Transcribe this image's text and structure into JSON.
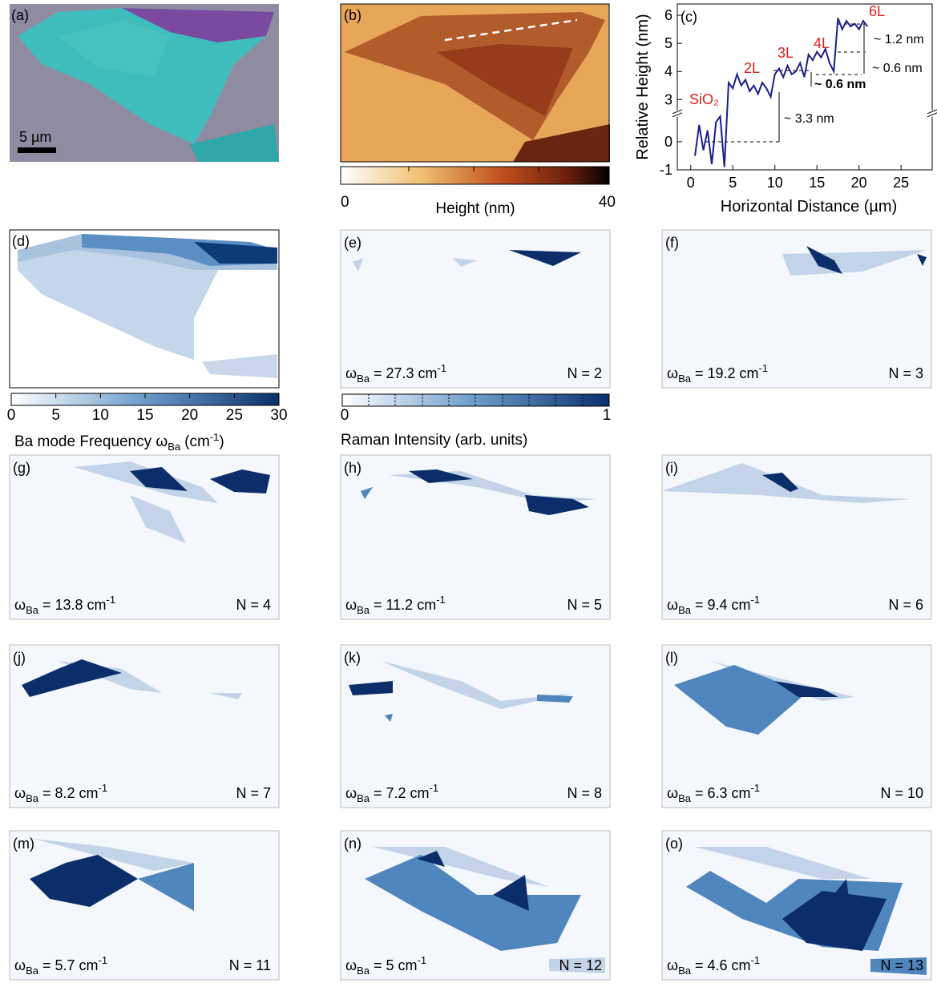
{
  "panels": {
    "a": {
      "label": "(a)",
      "scale_bar": "5 µm"
    },
    "b": {
      "label": "(b)"
    },
    "d": {
      "label": "(d)"
    }
  },
  "frequency_label": {
    "symbol": "ω",
    "subscript": "Ba",
    "equals": "=",
    "unit": "cm",
    "unit_exponent": "-1"
  },
  "maps": [
    {
      "label": "(e)",
      "frequency": 27.3,
      "layers": "N = 2"
    },
    {
      "label": "(f)",
      "frequency": 19.2,
      "layers": "N = 3"
    },
    {
      "label": "(g)",
      "frequency": 13.8,
      "layers": "N = 4"
    },
    {
      "label": "(h)",
      "frequency": 11.2,
      "layers": "N = 5"
    },
    {
      "label": "(i)",
      "frequency": 9.4,
      "layers": "N = 6"
    },
    {
      "label": "(j)",
      "frequency": 8.2,
      "layers": "N = 7"
    },
    {
      "label": "(k)",
      "frequency": 7.2,
      "layers": "N = 8"
    },
    {
      "label": "(l)",
      "frequency": 6.3,
      "layers": "N = 10"
    },
    {
      "label": "(m)",
      "frequency": 5.7,
      "layers": "N = 11"
    },
    {
      "label": "(n)",
      "frequency": 5,
      "layers": "N = 12"
    },
    {
      "label": "(o)",
      "frequency": 4.6,
      "layers": "N = 13"
    }
  ],
  "height_colorbar": {
    "title": "Height (nm)",
    "ticks": [
      0,
      40
    ]
  },
  "frequency_colorbar": {
    "title": "Ba mode Frequency ω",
    "title_subscript": "Ba",
    "title_unit": "(cm",
    "title_exponent": "-1",
    "title_close": ")",
    "ticks": [
      0,
      5,
      10,
      15,
      20,
      25,
      30
    ]
  },
  "intensity_colorbar": {
    "title": "Raman Intensity (arb. units)",
    "ticks": [
      0,
      1
    ]
  },
  "chart_data": {
    "type": "line",
    "panel_label": "(c)",
    "x_label": "Horizontal Distance (µm)",
    "y_label": "Relative Height (nm)",
    "x": [
      0.5,
      1.0,
      1.5,
      2.0,
      2.5,
      3.0,
      3.5,
      4.0,
      4.5,
      5.0,
      5.5,
      6.0,
      6.5,
      7.0,
      7.5,
      8.0,
      8.5,
      9.0,
      9.5,
      10.0,
      10.5,
      11.0,
      11.5,
      12.0,
      12.5,
      13.0,
      13.5,
      14.0,
      14.5,
      15.0,
      15.5,
      16.0,
      16.5,
      17.0,
      17.5,
      18.0,
      18.5,
      19.0,
      19.5,
      20.0,
      20.5,
      21.0
    ],
    "values": [
      -0.5,
      0.6,
      -0.3,
      0.4,
      -0.8,
      0.7,
      0.9,
      -0.9,
      3.6,
      3.4,
      3.9,
      3.5,
      3.7,
      3.3,
      3.5,
      3.2,
      3.6,
      3.4,
      3.1,
      3.9,
      4.1,
      3.8,
      4.2,
      3.9,
      4.0,
      4.3,
      3.8,
      4.6,
      4.4,
      4.7,
      4.5,
      4.8,
      4.3,
      4.0,
      5.9,
      5.5,
      5.8,
      5.6,
      5.7,
      5.5,
      5.8,
      5.6
    ],
    "color": "#1a1f8a",
    "xlim": [
      -1.6,
      28.7
    ],
    "xticks": [
      0,
      5,
      10,
      15,
      20,
      25
    ],
    "ylim": [
      -1,
      6.4
    ],
    "yticks": [
      -1,
      0,
      3,
      4,
      5,
      6
    ],
    "y_break": [
      1,
      2.5
    ],
    "annotations": [
      "SiO₂",
      "2L",
      "3L",
      "4L",
      "6L",
      "~ 1.2 nm",
      "~ 0.6 nm",
      "~ 0.6 nm",
      "~ 3.3 nm"
    ]
  }
}
